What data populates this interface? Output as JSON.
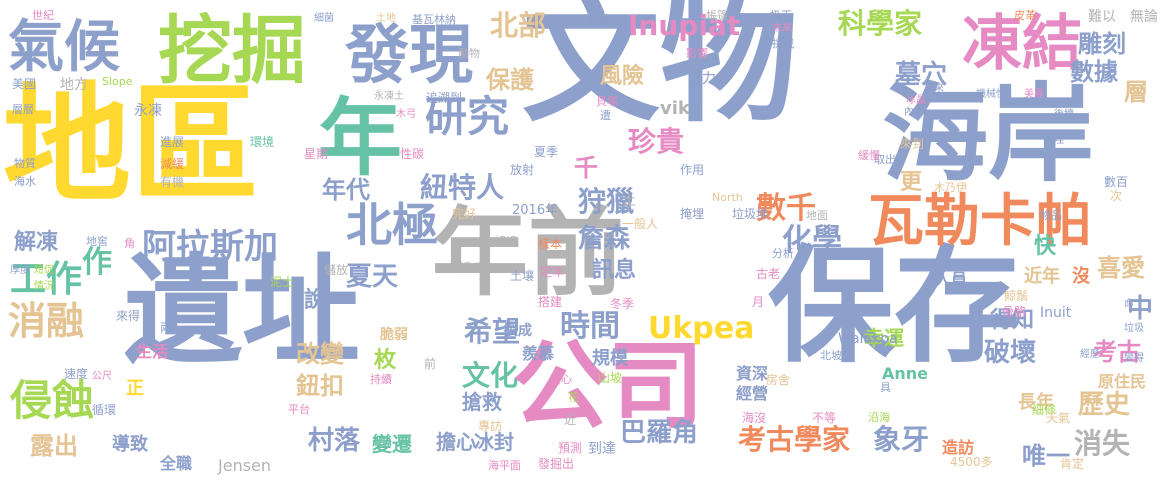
{
  "palette": {
    "blue": "#8d9fcb",
    "orange": "#f08a5d",
    "green": "#66c2a5",
    "yellow": "#ffd92f",
    "pink": "#e58ac3",
    "lime": "#a6d854",
    "tan": "#e5c494",
    "gray": "#b3b3b3"
  },
  "words": [
    "文物",
    "遺址",
    "地區",
    "保存",
    "年前",
    "海岸",
    "公司",
    "挖掘",
    "年",
    "氣候",
    "發現",
    "凍結",
    "研究",
    "瓦勒卡帕",
    "北極",
    "阿拉斯加",
    "消融",
    "侵蝕",
    "科學家",
    "北部",
    "Inupiat",
    "Ukpea",
    "工作",
    "考古學家",
    "象牙",
    "希望",
    "時間",
    "文化",
    "夏天",
    "村落",
    "狩獵",
    "紐特人",
    "年代",
    "珍貴",
    "雕刻",
    "數據",
    "墓穴",
    "數千",
    "化學",
    "詹森",
    "巴羅角",
    "歷史",
    "考古",
    "破壞",
    "中",
    "喜愛",
    "快",
    "改變",
    "鈕扣",
    "露出",
    "消失",
    "唯一",
    "層",
    "保護",
    "風險",
    "千",
    "更",
    "訊息",
    "得知",
    "說",
    "幸運",
    "解凍",
    "作",
    "近年",
    "長年",
    "原住民",
    "沒",
    "Anne",
    "vik",
    "Jensen",
    "人員",
    "枚",
    "搶救",
    "擔心",
    "冰封",
    "變遷",
    "導致",
    "全職",
    "造訪",
    "經營",
    "資深",
    "規模",
    "羨慕",
    "製成",
    "脆弱",
    "定年",
    "搭建",
    "山坡",
    "北坡",
    "Walakpa",
    "Inuit",
    "骨骼",
    "鯨鬚",
    "房舍",
    "4500多",
    "肯定",
    "細條",
    "天氣",
    "沿海",
    "不等",
    "海沒",
    "到達",
    "預測",
    "專訪",
    "發掘出",
    "海平面",
    "循環",
    "公尺",
    "速度",
    "生活",
    "正",
    "兩",
    "來得",
    "泥土",
    "儲放",
    "遺產",
    "土壤",
    "冬季",
    "古老",
    "月",
    "一般人",
    "2016年",
    "完好",
    "樣本",
    "超過",
    "地面",
    "North",
    "垃圾堆",
    "掩埋",
    "作用",
    "放射",
    "夏季",
    "性碳",
    "星期",
    "環境",
    "地窖",
    "角",
    "短促",
    "情況",
    "厚度",
    "海水",
    "物質",
    "減緩",
    "有機",
    "進展",
    "永凍",
    "美國",
    "地方",
    "層層",
    "Slope",
    "世紀",
    "細菌",
    "土地",
    "基瓦林納",
    "同事",
    "帳篷",
    "扔下",
    "未來",
    "挑戰",
    "皮革",
    "難以",
    "無論",
    "拿來",
    "冰晶",
    "內容",
    "機械性",
    "美麗",
    "後續",
    "埋",
    "取出",
    "來到",
    "木乃伊",
    "緩慢",
    "數百",
    "次",
    "物品",
    "垃圾",
    "命",
    "變得",
    "經歷",
    "動物",
    "影響",
    "奮力",
    "永凍土",
    "追溯到",
    "木弓",
    "貝塚",
    "遭",
    "前",
    "近",
    "花",
    "憂心",
    "持續",
    "平台",
    "具",
    "分析",
    "土",
    "乃",
    "外",
    "海",
    "上",
    "的",
    "下",
    "小",
    "人",
    "小時",
    "萬",
    "在"
  ]
}
